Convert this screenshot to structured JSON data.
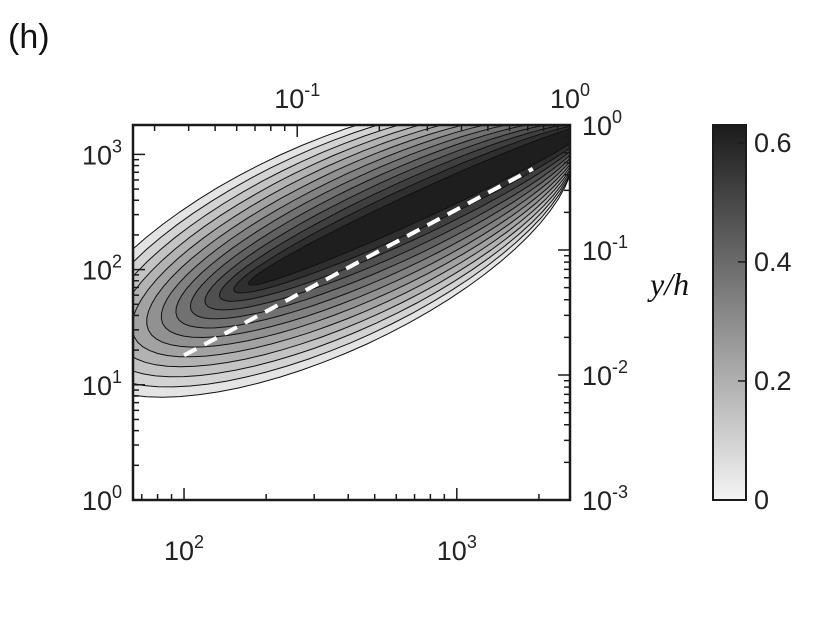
{
  "panel_label": "(h)",
  "chart_data": {
    "type": "heatmap",
    "subtype": "filled-contour",
    "colormap": "grayscale (white = 0, black = max)",
    "x_bottom": {
      "scale": "log",
      "range": [
        65,
        2600
      ],
      "ticks": [
        100,
        1000
      ],
      "tick_labels": [
        [
          "10",
          "2"
        ],
        [
          "10",
          "3"
        ]
      ]
    },
    "x_top": {
      "scale": "log",
      "range": [
        0.025,
        1.0
      ],
      "ticks": [
        0.1,
        1.0
      ],
      "tick_labels": [
        [
          "10",
          "-1"
        ],
        [
          "10",
          "0"
        ]
      ]
    },
    "y_left": {
      "scale": "log",
      "range": [
        1,
        1800
      ],
      "ticks": [
        1,
        10,
        100,
        1000
      ],
      "tick_labels": [
        [
          "10",
          "0"
        ],
        [
          "10",
          "1"
        ],
        [
          "10",
          "2"
        ],
        [
          "10",
          "3"
        ]
      ]
    },
    "y_right": {
      "scale": "log",
      "label": "y/h",
      "range": [
        0.001,
        1.0
      ],
      "ticks": [
        0.001,
        0.01,
        0.1,
        1.0
      ],
      "tick_labels": [
        [
          "10",
          "-3"
        ],
        [
          "10",
          "-2"
        ],
        [
          "10",
          "-1"
        ],
        [
          "10",
          "0"
        ]
      ]
    },
    "contour_levels": 13,
    "peak_value": 0.62,
    "peak_location": {
      "x": 800,
      "y": 400
    },
    "dashed_line": {
      "color": "#ffffff",
      "points": [
        {
          "x": 100,
          "y": 18
        },
        {
          "x": 1900,
          "y": 750
        }
      ]
    },
    "colorbar": {
      "range": [
        0,
        0.63
      ],
      "ticks": [
        0,
        0.2,
        0.4,
        0.6
      ],
      "tick_labels": [
        "0",
        "0.2",
        "0.4",
        "0.6"
      ],
      "color_low": "#f4f4f4",
      "color_high": "#1b1b1b"
    }
  }
}
